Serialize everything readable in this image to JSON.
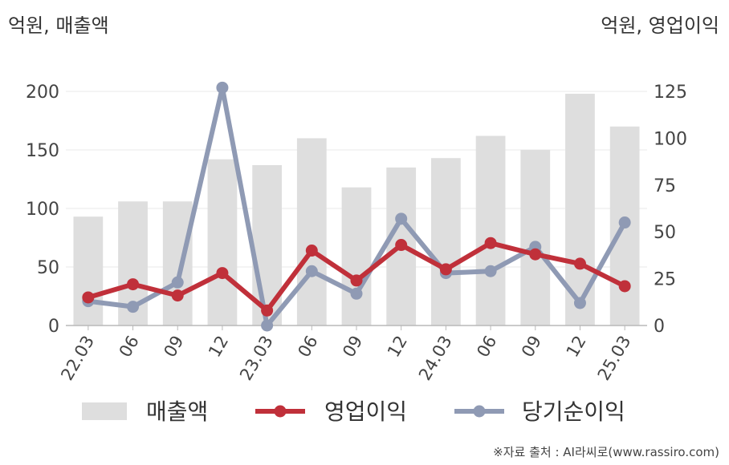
{
  "units": {
    "left": "억원, 매출액",
    "right": "억원, 영업이익"
  },
  "source": "※자료 출처 : AI라씨로(www.rassiro.com)",
  "colors": {
    "bar": "#dedede",
    "op": "#c0303a",
    "net": "#8f9ab4",
    "axis": "#b8b8b8",
    "grid": "#e8e8e8"
  },
  "chart_data": {
    "type": "bar+line",
    "categories": [
      "22.03",
      "06",
      "09",
      "12",
      "23.03",
      "06",
      "09",
      "12",
      "24.03",
      "06",
      "09",
      "12",
      "25.03"
    ],
    "y_left": {
      "ylim": [
        0,
        200
      ],
      "ticks": [
        0,
        50,
        100,
        150,
        200
      ]
    },
    "y_right": {
      "ylim": [
        0,
        125
      ],
      "ticks": [
        0,
        25,
        50,
        75,
        100,
        125
      ]
    },
    "series": [
      {
        "name": "매출액",
        "type": "bar",
        "axis": "left",
        "values": [
          93,
          106,
          106,
          142,
          137,
          160,
          118,
          135,
          143,
          162,
          150,
          198,
          170
        ]
      },
      {
        "name": "영업이익",
        "type": "line",
        "axis": "right",
        "values": [
          15,
          22,
          16,
          28,
          8,
          40,
          24,
          43,
          30,
          44,
          38,
          33,
          21
        ]
      },
      {
        "name": "당기순이익",
        "type": "line",
        "axis": "right",
        "values": [
          13,
          10,
          23,
          127,
          0,
          29,
          17,
          57,
          28,
          29,
          42,
          12,
          55
        ]
      }
    ],
    "legend_position": "bottom"
  }
}
